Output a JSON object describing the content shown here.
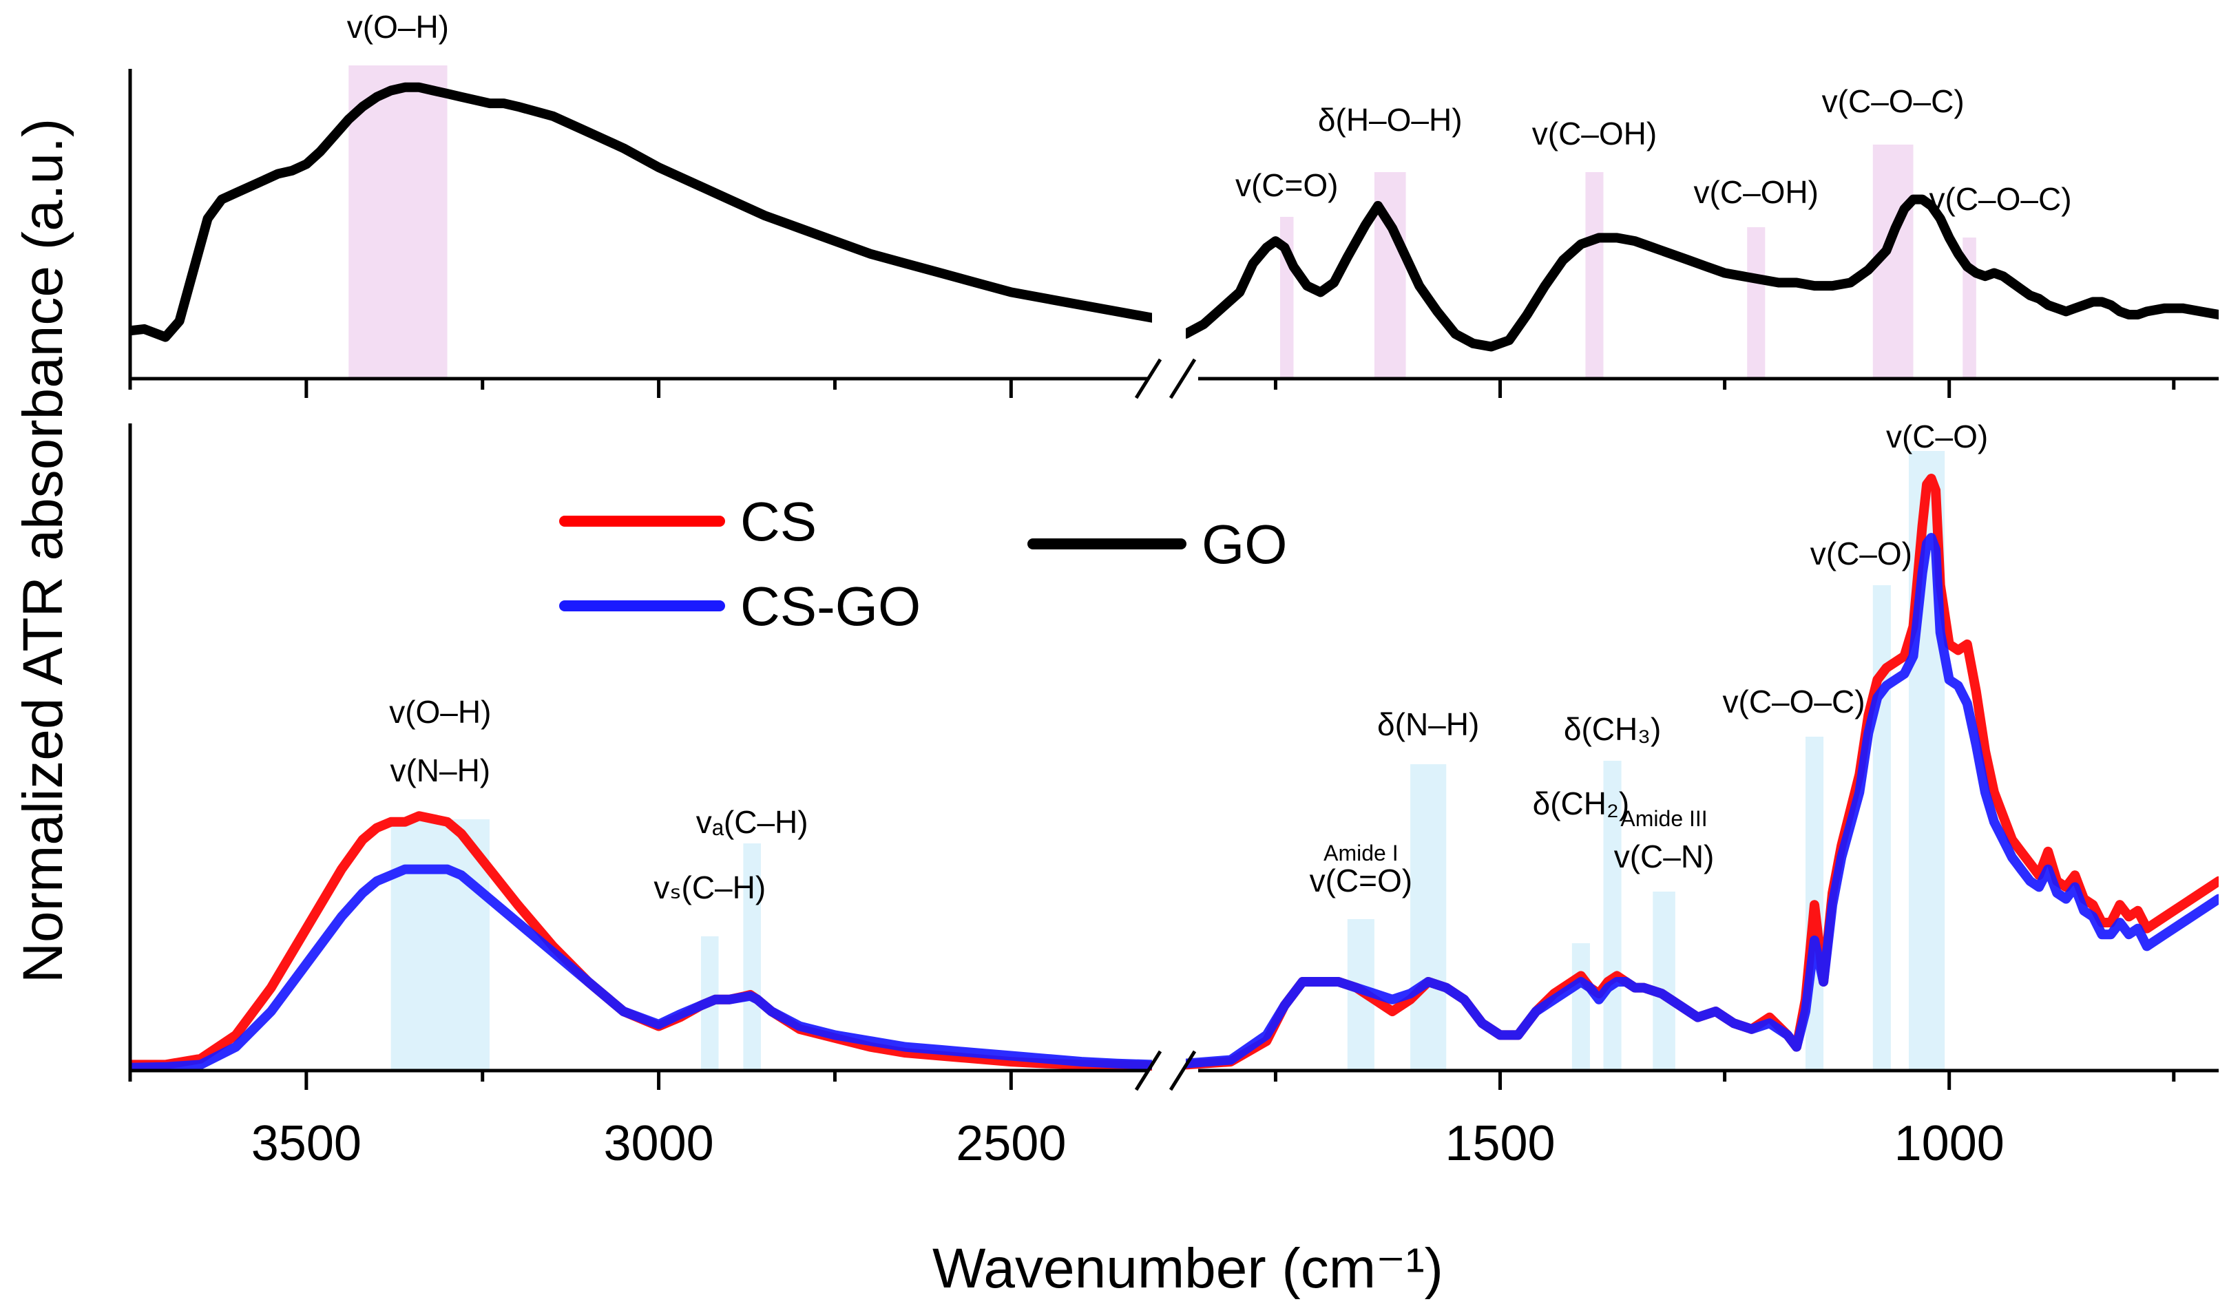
{
  "chart_data": {
    "type": "line",
    "title": "",
    "xlabel": "Wavenumber (cm⁻¹)",
    "ylabel": "Normalized ATR absorbance (a.u.)",
    "x_reversed": true,
    "x_break": [
      2300,
      1850
    ],
    "xlim_left": [
      3750,
      2300
    ],
    "xlim_right": [
      1850,
      700
    ],
    "xticks": [
      3500,
      3000,
      2500,
      1500,
      1000
    ],
    "xtick_labels": [
      "3500",
      "3000",
      "2500",
      "1500",
      "1000"
    ],
    "legend": [
      {
        "name": "CS",
        "color": "#ff0000"
      },
      {
        "name": "CS-GO",
        "color": "#1a1aff"
      },
      {
        "name": "GO",
        "color": "#000000"
      }
    ],
    "panels": [
      {
        "name": "top",
        "ylim": [
          0,
          1
        ],
        "series": [
          {
            "name": "GO",
            "color": "#000000",
            "x": [
              3750,
              3730,
              3700,
              3680,
              3660,
              3640,
              3620,
              3600,
              3580,
              3560,
              3540,
              3520,
              3500,
              3480,
              3460,
              3440,
              3420,
              3400,
              3380,
              3360,
              3340,
              3320,
              3300,
              3280,
              3260,
              3240,
              3220,
              3200,
              3150,
              3100,
              3050,
              3000,
              2950,
              2900,
              2850,
              2800,
              2750,
              2700,
              2650,
              2600,
              2550,
              2500,
              2450,
              2400,
              2350,
              2300,
              1850,
              1830,
              1810,
              1790,
              1775,
              1760,
              1750,
              1740,
              1730,
              1715,
              1700,
              1685,
              1670,
              1650,
              1636,
              1620,
              1605,
              1590,
              1570,
              1550,
              1530,
              1510,
              1490,
              1470,
              1450,
              1430,
              1410,
              1390,
              1370,
              1350,
              1330,
              1310,
              1290,
              1270,
              1250,
              1230,
              1210,
              1190,
              1170,
              1150,
              1130,
              1110,
              1090,
              1070,
              1060,
              1050,
              1040,
              1030,
              1020,
              1010,
              1000,
              990,
              980,
              970,
              960,
              950,
              940,
              930,
              920,
              910,
              900,
              890,
              880,
              870,
              860,
              850,
              840,
              830,
              820,
              810,
              800,
              790,
              780,
              760,
              740,
              720,
              700
            ],
            "y": [
              0.15,
              0.155,
              0.13,
              0.18,
              0.34,
              0.5,
              0.56,
              0.58,
              0.6,
              0.62,
              0.64,
              0.65,
              0.67,
              0.71,
              0.76,
              0.81,
              0.85,
              0.88,
              0.9,
              0.91,
              0.91,
              0.9,
              0.89,
              0.88,
              0.87,
              0.86,
              0.86,
              0.85,
              0.82,
              0.77,
              0.72,
              0.66,
              0.61,
              0.56,
              0.51,
              0.47,
              0.43,
              0.39,
              0.36,
              0.33,
              0.3,
              0.27,
              0.25,
              0.23,
              0.21,
              0.19,
              0.14,
              0.17,
              0.22,
              0.27,
              0.36,
              0.41,
              0.43,
              0.41,
              0.35,
              0.29,
              0.27,
              0.3,
              0.38,
              0.48,
              0.54,
              0.47,
              0.38,
              0.29,
              0.21,
              0.14,
              0.11,
              0.1,
              0.12,
              0.2,
              0.29,
              0.37,
              0.42,
              0.44,
              0.44,
              0.43,
              0.41,
              0.39,
              0.37,
              0.35,
              0.33,
              0.32,
              0.31,
              0.3,
              0.3,
              0.29,
              0.29,
              0.3,
              0.34,
              0.4,
              0.47,
              0.53,
              0.56,
              0.56,
              0.54,
              0.5,
              0.44,
              0.39,
              0.35,
              0.33,
              0.32,
              0.33,
              0.32,
              0.3,
              0.28,
              0.26,
              0.25,
              0.23,
              0.22,
              0.21,
              0.22,
              0.23,
              0.24,
              0.24,
              0.23,
              0.21,
              0.2,
              0.2,
              0.21,
              0.22,
              0.22,
              0.21,
              0.2
            ]
          }
        ],
        "bands": [
          {
            "x0": 3440,
            "x1": 3300,
            "label": "v(O–H)"
          },
          {
            "x0": 1745,
            "x1": 1730,
            "label": "v(C=O)"
          },
          {
            "x0": 1640,
            "x1": 1605,
            "label": "δ(H–O–H)"
          },
          {
            "x0": 1405,
            "x1": 1385,
            "label": "v(C–OH)"
          },
          {
            "x0": 1225,
            "x1": 1205,
            "label": "v(C–OH)"
          },
          {
            "x0": 1085,
            "x1": 1040,
            "label": "v(C–O–C)"
          },
          {
            "x0": 985,
            "x1": 970,
            "label": "v(C–O–C)"
          }
        ]
      },
      {
        "name": "bottom",
        "ylim": [
          0,
          1
        ],
        "series": [
          {
            "name": "CS",
            "color": "#ff0000",
            "x": [
              3750,
              3700,
              3650,
              3600,
              3550,
              3500,
              3450,
              3420,
              3400,
              3380,
              3360,
              3340,
              3300,
              3280,
              3260,
              3240,
              3200,
              3150,
              3100,
              3050,
              3000,
              2970,
              2940,
              2920,
              2900,
              2880,
              2870,
              2860,
              2840,
              2800,
              2750,
              2700,
              2650,
              2600,
              2550,
              2500,
              2450,
              2400,
              2350,
              2300,
              1850,
              1800,
              1760,
              1740,
              1720,
              1700,
              1680,
              1660,
              1640,
              1620,
              1600,
              1580,
              1560,
              1540,
              1520,
              1500,
              1480,
              1460,
              1440,
              1420,
              1410,
              1400,
              1390,
              1380,
              1370,
              1360,
              1350,
              1340,
              1320,
              1300,
              1280,
              1260,
              1250,
              1240,
              1220,
              1200,
              1180,
              1170,
              1160,
              1150,
              1140,
              1130,
              1120,
              1100,
              1090,
              1080,
              1070,
              1060,
              1050,
              1040,
              1030,
              1025,
              1020,
              1015,
              1010,
              1000,
              990,
              980,
              970,
              960,
              950,
              940,
              930,
              920,
              910,
              900,
              890,
              880,
              870,
              860,
              850,
              840,
              830,
              820,
              810,
              800,
              790,
              780,
              760,
              740,
              720,
              700
            ],
            "y": [
              0.01,
              0.01,
              0.02,
              0.06,
              0.14,
              0.24,
              0.34,
              0.39,
              0.41,
              0.42,
              0.42,
              0.43,
              0.42,
              0.4,
              0.37,
              0.34,
              0.28,
              0.21,
              0.15,
              0.1,
              0.075,
              0.09,
              0.11,
              0.12,
              0.12,
              0.125,
              0.128,
              0.12,
              0.1,
              0.07,
              0.055,
              0.04,
              0.03,
              0.025,
              0.02,
              0.015,
              0.012,
              0.01,
              0.01,
              0.008,
              0.01,
              0.015,
              0.05,
              0.11,
              0.15,
              0.15,
              0.15,
              0.14,
              0.12,
              0.1,
              0.12,
              0.15,
              0.14,
              0.12,
              0.08,
              0.06,
              0.06,
              0.1,
              0.13,
              0.15,
              0.16,
              0.14,
              0.13,
              0.15,
              0.16,
              0.15,
              0.14,
              0.14,
              0.13,
              0.11,
              0.09,
              0.1,
              0.09,
              0.08,
              0.07,
              0.09,
              0.06,
              0.04,
              0.12,
              0.28,
              0.15,
              0.3,
              0.38,
              0.5,
              0.6,
              0.66,
              0.68,
              0.69,
              0.7,
              0.75,
              0.92,
              0.99,
              1.0,
              0.98,
              0.82,
              0.72,
              0.71,
              0.72,
              0.64,
              0.54,
              0.47,
              0.43,
              0.39,
              0.37,
              0.35,
              0.33,
              0.37,
              0.32,
              0.31,
              0.33,
              0.29,
              0.28,
              0.25,
              0.25,
              0.28,
              0.26,
              0.27,
              0.24,
              0.26,
              0.28,
              0.3,
              0.32
            ]
          },
          {
            "name": "CS-GO",
            "color": "#1a1aff",
            "x": [
              3750,
              3700,
              3650,
              3600,
              3550,
              3500,
              3450,
              3420,
              3400,
              3380,
              3360,
              3340,
              3300,
              3280,
              3260,
              3240,
              3200,
              3150,
              3100,
              3050,
              3000,
              2970,
              2940,
              2920,
              2900,
              2880,
              2870,
              2860,
              2840,
              2800,
              2750,
              2700,
              2650,
              2600,
              2550,
              2500,
              2450,
              2400,
              2350,
              2300,
              1850,
              1800,
              1760,
              1740,
              1720,
              1700,
              1680,
              1660,
              1640,
              1620,
              1600,
              1580,
              1560,
              1540,
              1520,
              1500,
              1480,
              1460,
              1440,
              1420,
              1410,
              1400,
              1390,
              1380,
              1370,
              1360,
              1350,
              1340,
              1320,
              1300,
              1280,
              1260,
              1250,
              1240,
              1220,
              1200,
              1180,
              1170,
              1160,
              1150,
              1140,
              1130,
              1120,
              1100,
              1090,
              1080,
              1070,
              1060,
              1050,
              1040,
              1030,
              1025,
              1020,
              1015,
              1010,
              1000,
              990,
              980,
              970,
              960,
              950,
              940,
              930,
              920,
              910,
              900,
              890,
              880,
              870,
              860,
              850,
              840,
              830,
              820,
              810,
              800,
              790,
              780,
              760,
              740,
              720,
              700
            ],
            "y": [
              0.005,
              0.006,
              0.01,
              0.04,
              0.1,
              0.18,
              0.26,
              0.3,
              0.32,
              0.33,
              0.34,
              0.34,
              0.34,
              0.33,
              0.31,
              0.29,
              0.25,
              0.2,
              0.15,
              0.1,
              0.078,
              0.095,
              0.11,
              0.12,
              0.12,
              0.124,
              0.126,
              0.12,
              0.1,
              0.075,
              0.06,
              0.05,
              0.04,
              0.035,
              0.03,
              0.025,
              0.02,
              0.015,
              0.012,
              0.01,
              0.012,
              0.018,
              0.06,
              0.11,
              0.15,
              0.15,
              0.15,
              0.14,
              0.13,
              0.12,
              0.13,
              0.15,
              0.14,
              0.12,
              0.08,
              0.06,
              0.06,
              0.1,
              0.12,
              0.14,
              0.15,
              0.14,
              0.12,
              0.14,
              0.15,
              0.15,
              0.14,
              0.14,
              0.13,
              0.11,
              0.09,
              0.1,
              0.09,
              0.08,
              0.07,
              0.08,
              0.06,
              0.04,
              0.1,
              0.22,
              0.15,
              0.28,
              0.36,
              0.47,
              0.57,
              0.63,
              0.65,
              0.66,
              0.67,
              0.7,
              0.84,
              0.89,
              0.9,
              0.88,
              0.74,
              0.66,
              0.65,
              0.62,
              0.55,
              0.47,
              0.42,
              0.39,
              0.36,
              0.34,
              0.32,
              0.31,
              0.34,
              0.3,
              0.29,
              0.31,
              0.27,
              0.26,
              0.23,
              0.23,
              0.25,
              0.23,
              0.24,
              0.21,
              0.23,
              0.25,
              0.27,
              0.29
            ]
          }
        ],
        "bands": [
          {
            "x0": 3380,
            "x1": 3240,
            "labels": [
              "v(O–H)",
              "v(N–H)"
            ]
          },
          {
            "x0": 2940,
            "x1": 2915,
            "label": "vₛ(C–H)"
          },
          {
            "x0": 2880,
            "x1": 2855,
            "label": "vₐ(C–H)"
          },
          {
            "x0": 1670,
            "x1": 1640,
            "labels": [
              "Amide I",
              "v(C=O)"
            ]
          },
          {
            "x0": 1600,
            "x1": 1560,
            "label": "δ(N–H)"
          },
          {
            "x0": 1420,
            "x1": 1400,
            "label": "δ(CH₂)"
          },
          {
            "x0": 1385,
            "x1": 1365,
            "label": "δ(CH₃)"
          },
          {
            "x0": 1330,
            "x1": 1305,
            "labels": [
              "Amide III",
              "v(C–N)"
            ]
          },
          {
            "x0": 1160,
            "x1": 1140,
            "label": "v(C–O–C)"
          },
          {
            "x0": 1085,
            "x1": 1065,
            "label": "v(C–O)"
          },
          {
            "x0": 1045,
            "x1": 1005,
            "label": "v(C–O)"
          }
        ]
      }
    ]
  }
}
